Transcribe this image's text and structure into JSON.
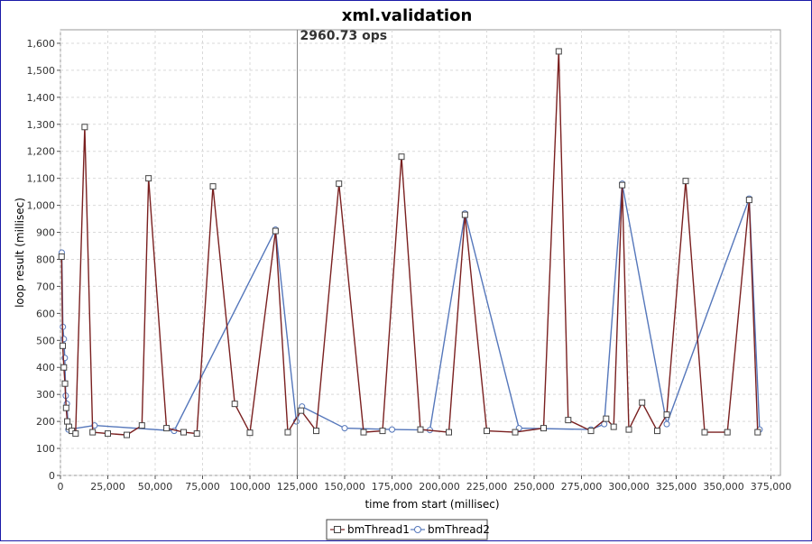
{
  "chart_data": {
    "type": "line",
    "title": "xml.validation",
    "xlabel": "time from start (millisec)",
    "ylabel": "loop result (millisec)",
    "xlim": [
      0,
      380000
    ],
    "ylim": [
      0,
      1650
    ],
    "x_ticks": [
      0,
      25000,
      50000,
      75000,
      100000,
      125000,
      150000,
      175000,
      200000,
      225000,
      250000,
      275000,
      300000,
      325000,
      350000,
      375000
    ],
    "x_tick_labels": [
      "0",
      "25,000",
      "50,000",
      "75,000",
      "100,000",
      "125,000",
      "150,000",
      "175,000",
      "200,000",
      "225,000",
      "250,000",
      "275,000",
      "300,000",
      "325,000",
      "350,000",
      "375,000"
    ],
    "y_ticks": [
      0,
      100,
      200,
      300,
      400,
      500,
      600,
      700,
      800,
      900,
      1000,
      1100,
      1200,
      1300,
      1400,
      1500,
      1600
    ],
    "y_tick_labels": [
      "0",
      "100",
      "200",
      "300",
      "400",
      "500",
      "600",
      "700",
      "800",
      "900",
      "1,000",
      "1,100",
      "1,200",
      "1,300",
      "1,400",
      "1,500",
      "1,600"
    ],
    "grid": true,
    "legend_position": "bottom-center",
    "marker": {
      "x": 125000,
      "label": "2960.73 ops"
    },
    "series": [
      {
        "name": "bmThread1",
        "color": "#7a2020",
        "marker_shape": "square",
        "points": [
          [
            600,
            810
          ],
          [
            1200,
            480
          ],
          [
            1800,
            400
          ],
          [
            2400,
            340
          ],
          [
            3000,
            250
          ],
          [
            3600,
            200
          ],
          [
            4500,
            180
          ],
          [
            6000,
            165
          ],
          [
            8000,
            155
          ],
          [
            12800,
            1290
          ],
          [
            17000,
            160
          ],
          [
            25000,
            155
          ],
          [
            35000,
            150
          ],
          [
            43000,
            185
          ],
          [
            46500,
            1100
          ],
          [
            56000,
            175
          ],
          [
            65000,
            160
          ],
          [
            72000,
            155
          ],
          [
            80500,
            1070
          ],
          [
            92000,
            265
          ],
          [
            100000,
            158
          ],
          [
            113500,
            905
          ],
          [
            120000,
            160
          ],
          [
            127000,
            240
          ],
          [
            135000,
            165
          ],
          [
            147000,
            1080
          ],
          [
            160000,
            160
          ],
          [
            170000,
            165
          ],
          [
            180000,
            1180
          ],
          [
            190000,
            170
          ],
          [
            205000,
            160
          ],
          [
            213500,
            965
          ],
          [
            225000,
            165
          ],
          [
            240000,
            160
          ],
          [
            255000,
            175
          ],
          [
            263000,
            1570
          ],
          [
            268000,
            205
          ],
          [
            280000,
            165
          ],
          [
            288000,
            210
          ],
          [
            292000,
            180
          ],
          [
            296500,
            1075
          ],
          [
            300000,
            170
          ],
          [
            307000,
            270
          ],
          [
            315000,
            165
          ],
          [
            320000,
            225
          ],
          [
            330000,
            1090
          ],
          [
            340000,
            160
          ],
          [
            352000,
            160
          ],
          [
            363500,
            1020
          ],
          [
            368000,
            160
          ]
        ]
      },
      {
        "name": "bmThread2",
        "color": "#5577bb",
        "marker_shape": "circle",
        "points": [
          [
            700,
            825
          ],
          [
            1300,
            550
          ],
          [
            1800,
            505
          ],
          [
            2300,
            435
          ],
          [
            2800,
            295
          ],
          [
            3400,
            265
          ],
          [
            4200,
            170
          ],
          [
            18000,
            185
          ],
          [
            60000,
            165
          ],
          [
            113500,
            910
          ],
          [
            124500,
            200
          ],
          [
            127500,
            255
          ],
          [
            150000,
            175
          ],
          [
            175000,
            170
          ],
          [
            195000,
            168
          ],
          [
            213500,
            970
          ],
          [
            242000,
            175
          ],
          [
            280000,
            170
          ],
          [
            287000,
            190
          ],
          [
            296500,
            1080
          ],
          [
            320000,
            190
          ],
          [
            363500,
            1025
          ],
          [
            369000,
            170
          ]
        ]
      }
    ]
  }
}
